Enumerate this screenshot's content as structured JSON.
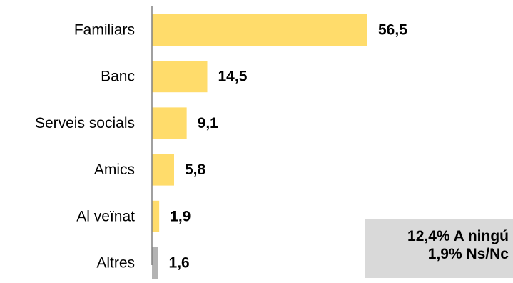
{
  "chart_data": {
    "type": "bar",
    "orientation": "horizontal",
    "categories": [
      "Familiars",
      "Banc",
      "Serveis socials",
      "Amics",
      "Al veïnat",
      "Altres"
    ],
    "values": [
      56.5,
      14.5,
      9.1,
      5.8,
      1.9,
      1.6
    ],
    "value_labels": [
      "56,5",
      "14,5",
      "9,1",
      "5,8",
      "1,9",
      "1,6"
    ],
    "bar_colors": [
      "#ffdc6b",
      "#ffdc6b",
      "#ffdc6b",
      "#ffdc6b",
      "#ffdc6b",
      "#b3b3b3"
    ],
    "axis_color": "#808080",
    "title": "",
    "xlabel": "",
    "ylabel": "",
    "xlim": [
      0,
      60
    ],
    "grid": false,
    "legend": "none"
  },
  "note_box": {
    "background": "#d9d9d9",
    "lines": [
      "12,4% A ningú",
      "1,9% Ns/Nc"
    ]
  }
}
